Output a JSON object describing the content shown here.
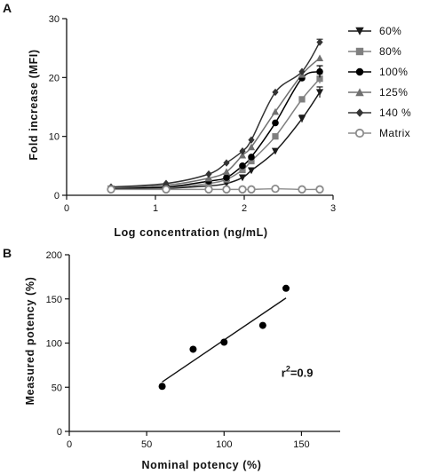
{
  "panels": [
    {
      "letter": "A",
      "chart_data": {
        "type": "line",
        "title": "",
        "xlabel": "Log concentration (ng/mL)",
        "ylabel": "Fold increase (MFI)",
        "xlim": [
          0,
          3
        ],
        "ylim": [
          0,
          30
        ],
        "xticks": [
          0,
          1,
          2,
          3
        ],
        "yticks": [
          0,
          10,
          20,
          30
        ],
        "grid": false,
        "legend_position": "right",
        "series": [
          {
            "name": "60%",
            "marker": "triangle-down",
            "color": "#1a1a1a",
            "x": [
              0.5,
              1.12,
              1.6,
              1.8,
              1.98,
              2.08,
              2.35,
              2.65,
              2.85
            ],
            "y": [
              1.1,
              1.2,
              1.6,
              2.0,
              3.0,
              4.2,
              7.5,
              13.0,
              17.5
            ],
            "errors": [
              0,
              0,
              0,
              0,
              0,
              0,
              0,
              0.6,
              0.9
            ]
          },
          {
            "name": "80%",
            "marker": "square",
            "color": "#808080",
            "x": [
              0.5,
              1.12,
              1.6,
              1.8,
              1.98,
              2.08,
              2.35,
              2.65,
              2.85
            ],
            "y": [
              1.1,
              1.3,
              2.0,
              2.7,
              4.3,
              5.8,
              10.0,
              16.3,
              19.8
            ],
            "errors": [
              0,
              0,
              0,
              0,
              0,
              0,
              0,
              0,
              0.8
            ]
          },
          {
            "name": "100%",
            "marker": "circle",
            "color": "#000000",
            "x": [
              0.5,
              1.12,
              1.6,
              1.8,
              1.98,
              2.08,
              2.35,
              2.65,
              2.85
            ],
            "y": [
              1.2,
              1.4,
              2.4,
              3.0,
              5.0,
              6.5,
              12.3,
              19.9,
              21.0
            ],
            "errors": [
              0,
              0,
              0,
              0,
              0,
              0,
              0,
              0,
              1.0
            ]
          },
          {
            "name": "125%",
            "marker": "triangle-up",
            "color": "#707070",
            "x": [
              0.5,
              1.12,
              1.6,
              1.8,
              1.98,
              2.08,
              2.35,
              2.65,
              2.85
            ],
            "y": [
              1.3,
              1.7,
              2.9,
              4.0,
              6.8,
              8.2,
              14.2,
              20.5,
              23.3
            ],
            "errors": [
              0,
              0,
              0,
              0,
              0,
              0,
              0,
              0,
              0
            ]
          },
          {
            "name": "140 %",
            "marker": "diamond",
            "color": "#333333",
            "x": [
              0.5,
              1.12,
              1.6,
              1.8,
              1.98,
              2.08,
              2.35,
              2.65,
              2.85
            ],
            "y": [
              1.4,
              2.0,
              3.6,
              5.5,
              7.5,
              9.4,
              17.5,
              21.0,
              26.0
            ],
            "errors": [
              0,
              0,
              0,
              0,
              0,
              0,
              0,
              0,
              0.5
            ]
          },
          {
            "name": "Matrix",
            "marker": "open-circle",
            "color": "#8c8c8c",
            "x": [
              0.5,
              1.12,
              1.6,
              1.8,
              1.98,
              2.08,
              2.35,
              2.65,
              2.85
            ],
            "y": [
              1.0,
              1.0,
              1.0,
              1.0,
              1.0,
              1.0,
              1.1,
              1.0,
              1.0
            ],
            "errors": [
              0,
              0,
              0,
              0,
              0,
              0,
              0,
              0,
              0
            ]
          }
        ]
      }
    },
    {
      "letter": "B",
      "chart_data": {
        "type": "scatter",
        "title": "",
        "xlabel": "Nominal potency (%)",
        "ylabel": "Measured potency (%)",
        "xlim": [
          0,
          175
        ],
        "ylim": [
          0,
          200
        ],
        "xticks": [
          0,
          50,
          100,
          150
        ],
        "yticks": [
          0,
          50,
          100,
          150,
          200
        ],
        "grid": false,
        "x": [
          60,
          80,
          100,
          125,
          140
        ],
        "y": [
          51,
          93,
          101,
          120,
          162
        ],
        "fit_line": {
          "x": [
            60,
            140
          ],
          "y": [
            56,
            151
          ]
        },
        "annotation": {
          "prefix": "r",
          "superscript": "2",
          "suffix": "=0.9",
          "x": 137,
          "y": 62
        }
      }
    }
  ]
}
